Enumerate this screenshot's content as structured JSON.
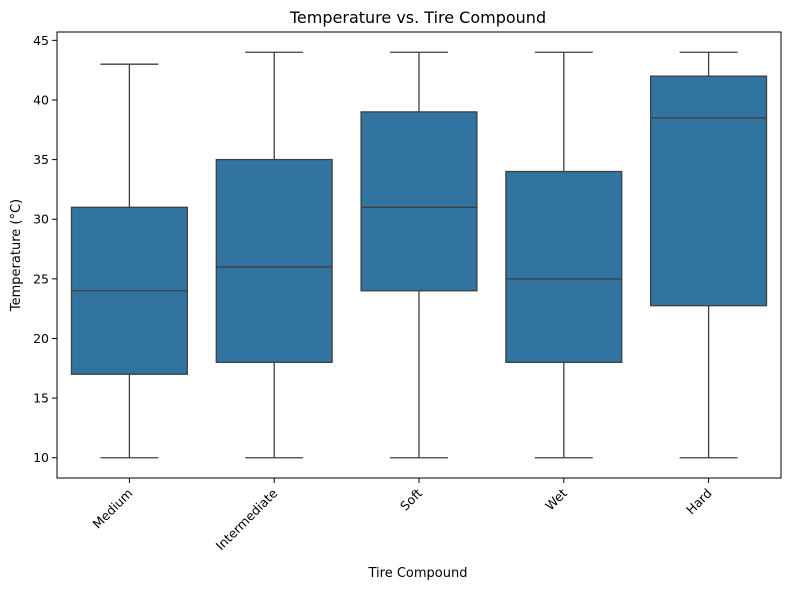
{
  "chart_data": {
    "type": "box",
    "title": "Temperature vs. Tire Compound",
    "xlabel": "Tire Compound",
    "ylabel": "Temperature (°C)",
    "categories": [
      "Medium",
      "Intermediate",
      "Soft",
      "Wet",
      "Hard"
    ],
    "boxes": [
      {
        "category": "Medium",
        "whisker_low": 10,
        "q1": 17,
        "median": 24,
        "q3": 31,
        "whisker_high": 43
      },
      {
        "category": "Intermediate",
        "whisker_low": 10,
        "q1": 18,
        "median": 26,
        "q3": 35,
        "whisker_high": 44
      },
      {
        "category": "Soft",
        "whisker_low": 10,
        "q1": 24,
        "median": 31,
        "q3": 39,
        "whisker_high": 44
      },
      {
        "category": "Wet",
        "whisker_low": 10,
        "q1": 18,
        "median": 25,
        "q3": 34,
        "whisker_high": 44
      },
      {
        "category": "Hard",
        "whisker_low": 10,
        "q1": 22.75,
        "median": 38.5,
        "q3": 42,
        "whisker_high": 44
      }
    ],
    "yticks": [
      10,
      15,
      20,
      25,
      30,
      35,
      40,
      45
    ],
    "ylim": [
      8.3,
      45.7
    ],
    "grid": false,
    "x_tick_rotation": 45,
    "colors": {
      "box_fill": "#3274a1",
      "line": "#3f3f3f",
      "axis": "#000000"
    }
  }
}
